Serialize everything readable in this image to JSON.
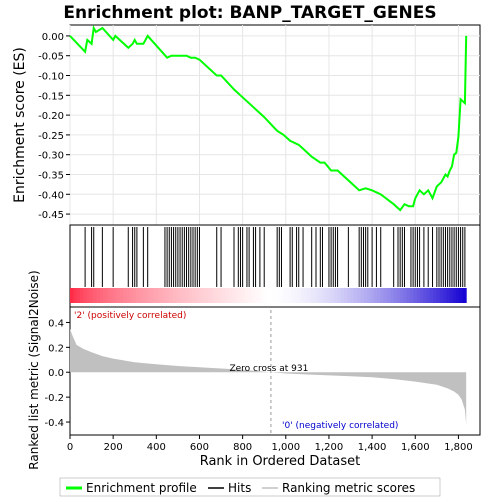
{
  "chart_data": {
    "type": "line",
    "title": "Enrichment plot: BANP_TARGET_GENES",
    "colors": {
      "enrichment_line": "#00ff00",
      "hits": "#000000",
      "metric_fill": "#c0c0c0",
      "positive_label": "#cc0000",
      "negative_label": "#0000cc",
      "zero_cross_line": "#999999"
    },
    "top_panel": {
      "ylabel": "Enrichment score (ES)",
      "ylim": [
        -0.47,
        0.02
      ],
      "yticks": [
        "0.00",
        "-0.05",
        "-0.10",
        "-0.15",
        "-0.20",
        "-0.25",
        "-0.30",
        "-0.35",
        "-0.40",
        "-0.45"
      ],
      "ytick_values": [
        0.0,
        -0.05,
        -0.1,
        -0.15,
        -0.2,
        -0.25,
        -0.3,
        -0.35,
        -0.4,
        -0.45
      ],
      "series": [
        {
          "name": "Enrichment profile",
          "x": [
            0,
            70,
            80,
            100,
            110,
            120,
            150,
            200,
            210,
            270,
            290,
            300,
            310,
            340,
            360,
            450,
            470,
            490,
            500,
            520,
            540,
            560,
            580,
            600,
            680,
            700,
            760,
            800,
            850,
            900,
            960,
            990,
            1020,
            1060,
            1080,
            1120,
            1160,
            1180,
            1210,
            1240,
            1290,
            1340,
            1370,
            1400,
            1440,
            1500,
            1530,
            1550,
            1570,
            1590,
            1600,
            1620,
            1640,
            1660,
            1680,
            1700,
            1720,
            1740,
            1750,
            1760,
            1770,
            1780,
            1790,
            1800,
            1810,
            1830,
            1836
          ],
          "y": [
            0.0,
            -0.04,
            -0.01,
            -0.02,
            0.02,
            0.01,
            0.02,
            -0.01,
            0.0,
            -0.03,
            -0.02,
            -0.01,
            -0.02,
            -0.02,
            0.0,
            -0.055,
            -0.05,
            -0.05,
            -0.05,
            -0.05,
            -0.05,
            -0.055,
            -0.055,
            -0.06,
            -0.1,
            -0.1,
            -0.135,
            -0.155,
            -0.18,
            -0.205,
            -0.24,
            -0.25,
            -0.265,
            -0.275,
            -0.285,
            -0.305,
            -0.32,
            -0.32,
            -0.34,
            -0.34,
            -0.365,
            -0.39,
            -0.385,
            -0.39,
            -0.4,
            -0.425,
            -0.44,
            -0.425,
            -0.43,
            -0.43,
            -0.41,
            -0.39,
            -0.4,
            -0.39,
            -0.41,
            -0.38,
            -0.37,
            -0.35,
            -0.355,
            -0.34,
            -0.33,
            -0.3,
            -0.295,
            -0.255,
            -0.16,
            -0.17,
            0.0
          ]
        }
      ]
    },
    "hits_panel": {
      "name": "Hits",
      "positions": [
        70,
        100,
        110,
        150,
        200,
        270,
        290,
        300,
        310,
        340,
        360,
        440,
        450,
        460,
        470,
        480,
        490,
        500,
        510,
        520,
        530,
        540,
        550,
        560,
        570,
        580,
        590,
        600,
        680,
        700,
        760,
        780,
        790,
        800,
        820,
        830,
        850,
        860,
        880,
        900,
        960,
        970,
        980,
        1020,
        1030,
        1050,
        1060,
        1080,
        1120,
        1140,
        1160,
        1170,
        1200,
        1210,
        1220,
        1230,
        1240,
        1290,
        1340,
        1350,
        1360,
        1370,
        1380,
        1400,
        1420,
        1440,
        1500,
        1520,
        1530,
        1540,
        1550,
        1580,
        1590,
        1600,
        1610,
        1620,
        1640,
        1660,
        1680,
        1700,
        1710,
        1720,
        1730,
        1740,
        1750,
        1760,
        1770,
        1780,
        1790,
        1800,
        1810,
        1820,
        1830
      ]
    },
    "metric_panel": {
      "ylabel": "Ranked list metric (Signal2Noise)",
      "xlabel": "Rank in Ordered Dataset",
      "name": "Ranking metric scores",
      "ylim": [
        -0.48,
        0.5
      ],
      "yticks": [
        "0.4",
        "0.2",
        "0.0",
        "-0.2",
        "-0.4"
      ],
      "ytick_values": [
        0.4,
        0.2,
        0.0,
        -0.2,
        -0.4
      ],
      "xticks": [
        "0",
        "200",
        "400",
        "600",
        "800",
        "1,000",
        "1,200",
        "1,400",
        "1,600",
        "1,800"
      ],
      "xtick_values": [
        0,
        200,
        400,
        600,
        800,
        1000,
        1200,
        1400,
        1600,
        1800
      ],
      "xlim": [
        0,
        1900
      ],
      "x": [
        0,
        10,
        30,
        60,
        100,
        150,
        200,
        300,
        400,
        500,
        600,
        700,
        800,
        931,
        1000,
        1100,
        1200,
        1300,
        1400,
        1500,
        1600,
        1700,
        1750,
        1780,
        1800,
        1815,
        1830,
        1836
      ],
      "values": [
        0.35,
        0.3,
        0.22,
        0.19,
        0.16,
        0.13,
        0.11,
        0.08,
        0.065,
        0.05,
        0.04,
        0.03,
        0.02,
        0.0,
        -0.01,
        -0.018,
        -0.025,
        -0.032,
        -0.04,
        -0.055,
        -0.075,
        -0.1,
        -0.13,
        -0.155,
        -0.18,
        -0.22,
        -0.3,
        -0.42
      ],
      "zero_cross_label": "Zero cross at 931",
      "zero_cross": 931,
      "positive_label": "'2' (positively correlated)",
      "negative_label": "'0' (negatively correlated)"
    },
    "legend": {
      "placement": "bottom",
      "items": [
        "Enrichment profile",
        "Hits",
        "Ranking metric scores"
      ]
    },
    "n_genes": 1836
  }
}
